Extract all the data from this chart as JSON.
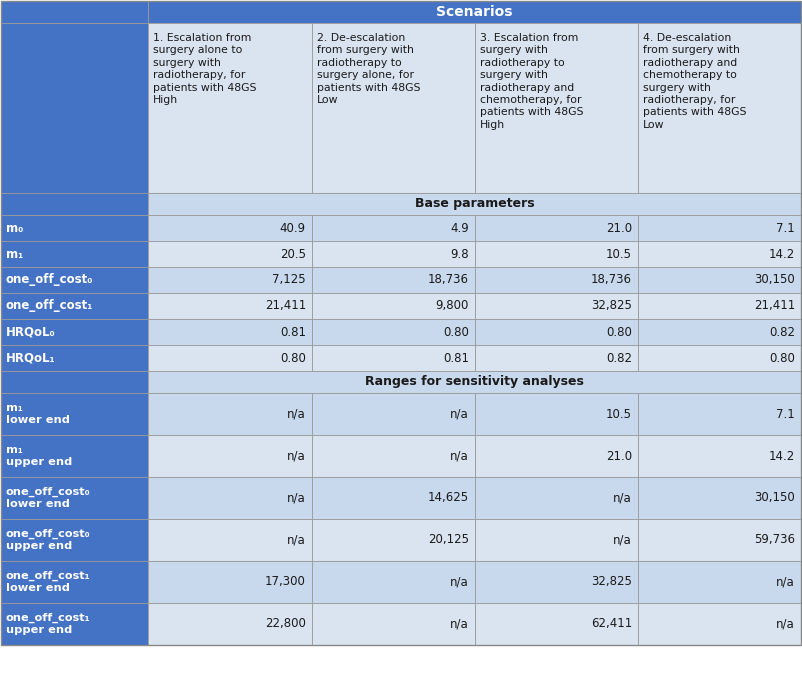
{
  "title": "Scenarios",
  "col_headers": [
    "1. Escalation from\nsurgery alone to\nsurgery with\nradiotherapy, for\npatients with 48GS\nHigh",
    "2. De-escalation\nfrom surgery with\nradiotherapy to\nsurgery alone, for\npatients with 48GS\nLow",
    "3. Escalation from\nsurgery with\nradiotherapy to\nsurgery with\nradiotherapy and\nchemotherapy, for\npatients with 48GS\nHigh",
    "4. De-escalation\nfrom surgery with\nradiotherapy and\nchemotherapy to\nsurgery with\nradiotherapy, for\npatients with 48GS\nLow"
  ],
  "section1_title": "Base parameters",
  "section1_rows": [
    {
      "label": "m₀",
      "vals": [
        "40.9",
        "4.9",
        "21.0",
        "7.1"
      ]
    },
    {
      "label": "m₁",
      "vals": [
        "20.5",
        "9.8",
        "10.5",
        "14.2"
      ]
    },
    {
      "label": "one_off_cost₀",
      "vals": [
        "7,125",
        "18,736",
        "18,736",
        "30,150"
      ]
    },
    {
      "label": "one_off_cost₁",
      "vals": [
        "21,411",
        "9,800",
        "32,825",
        "21,411"
      ]
    },
    {
      "label": "HRQoL₀",
      "vals": [
        "0.81",
        "0.80",
        "0.80",
        "0.82"
      ]
    },
    {
      "label": "HRQoL₁",
      "vals": [
        "0.80",
        "0.81",
        "0.82",
        "0.80"
      ]
    }
  ],
  "section2_title": "Ranges for sensitivity analyses",
  "section2_rows": [
    {
      "label": "m₁\nlower end",
      "vals": [
        "n/a",
        "n/a",
        "10.5",
        "7.1"
      ]
    },
    {
      "label": "m₁\nupper end",
      "vals": [
        "n/a",
        "n/a",
        "21.0",
        "14.2"
      ]
    },
    {
      "label": "one_off_cost₀\nlower end",
      "vals": [
        "n/a",
        "14,625",
        "n/a",
        "30,150"
      ]
    },
    {
      "label": "one_off_cost₀\nupper end",
      "vals": [
        "n/a",
        "20,125",
        "n/a",
        "59,736"
      ]
    },
    {
      "label": "one_off_cost₁\nlower end",
      "vals": [
        "17,300",
        "n/a",
        "32,825",
        "n/a"
      ]
    },
    {
      "label": "one_off_cost₁\nupper end",
      "vals": [
        "22,800",
        "n/a",
        "62,411",
        "n/a"
      ]
    }
  ],
  "color_header_dark": "#4472C4",
  "color_header_medium": "#4472C4",
  "color_label_dark": "#4472C4",
  "color_row_alt1": "#C9D9ED",
  "color_row_alt2": "#DAE4F0",
  "color_section_header": "#C9D9ED",
  "color_white": "#FFFFFF",
  "color_text_white": "#FFFFFF",
  "color_text_dark": "#1A1A1A",
  "color_border": "#AAAAAA"
}
